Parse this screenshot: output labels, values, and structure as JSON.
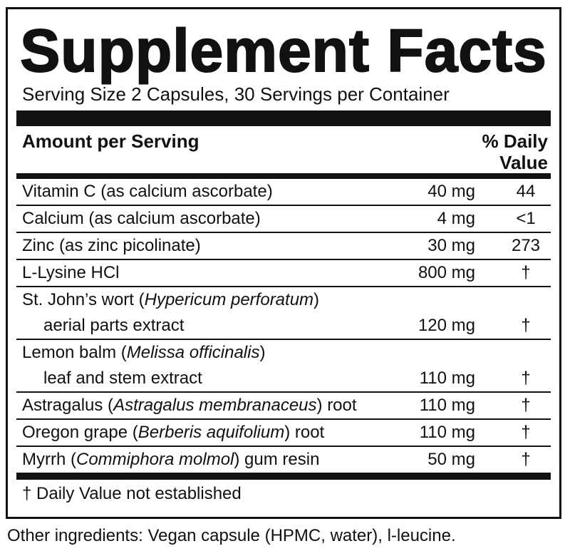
{
  "title": "Supplement Facts",
  "serving": "Serving Size 2 Capsules, 30 Servings per Container",
  "header": {
    "amount": "Amount per Serving",
    "dv_line1": "% Daily",
    "dv_line2": "Value"
  },
  "rows": [
    {
      "name": [
        "Vitamin C (as calcium ascorbate)"
      ],
      "amount": "40 mg",
      "dv": "44"
    },
    {
      "name": [
        "Calcium (as calcium ascorbate)"
      ],
      "amount": "4 mg",
      "dv": "<1"
    },
    {
      "name": [
        "Zinc (as zinc picolinate)"
      ],
      "amount": "30 mg",
      "dv": "273"
    },
    {
      "name": [
        "L-Lysine HCl"
      ],
      "amount": "800 mg",
      "dv": "†"
    },
    {
      "name": [
        "St. John’s wort (",
        "Hypericum perforatum",
        ")"
      ],
      "name_line2": "aerial parts extract",
      "amount": "120 mg",
      "dv": "†"
    },
    {
      "name": [
        "Lemon balm (",
        "Melissa officinalis",
        ")"
      ],
      "name_line2": "leaf and stem extract",
      "amount": "110 mg",
      "dv": "†"
    },
    {
      "name": [
        "Astragalus (",
        "Astragalus membranaceus",
        ") root"
      ],
      "amount": "110 mg",
      "dv": "†"
    },
    {
      "name": [
        "Oregon grape (",
        "Berberis aquifolium",
        ") root"
      ],
      "amount": "110 mg",
      "dv": "†"
    },
    {
      "name": [
        "Myrrh (",
        "Commiphora molmol",
        ") gum resin"
      ],
      "amount": "50 mg",
      "dv": "†"
    }
  ],
  "footnote": "† Daily Value not established",
  "other_ingredients": "Other ingredients: Vegan capsule (HPMC, water), l-leucine."
}
